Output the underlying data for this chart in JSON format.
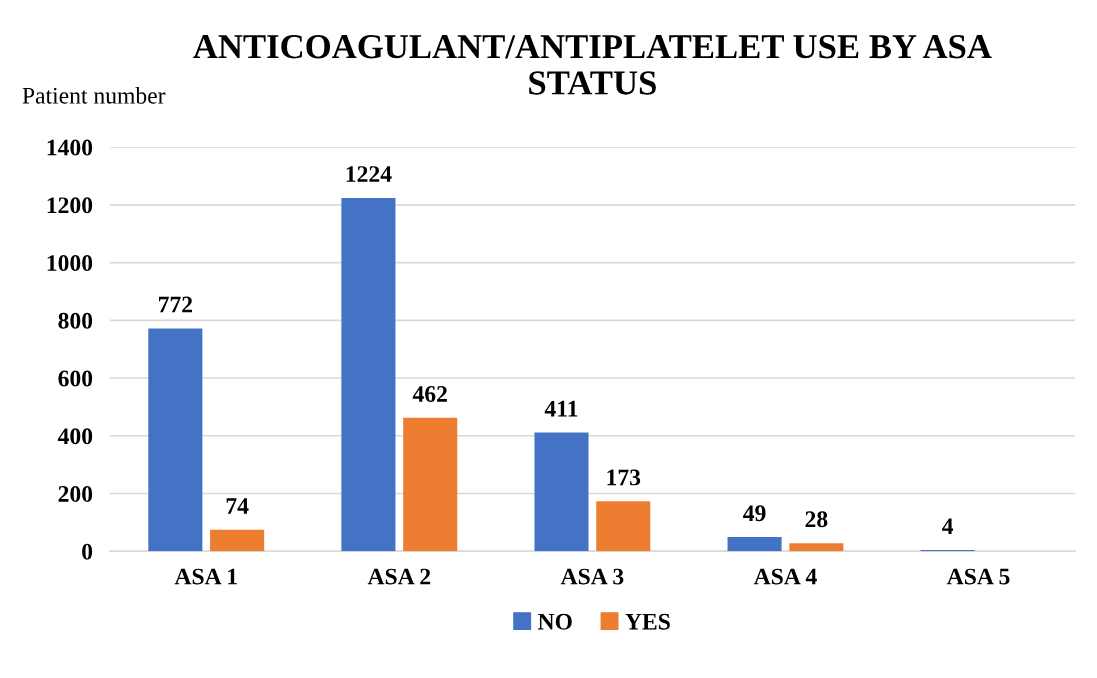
{
  "chart_data": {
    "type": "bar",
    "title": "ANTICOAGULANT/ANTIPLATELET USE BY ASA\nSTATUS",
    "ylabel": "Patient number",
    "categories": [
      "ASA 1",
      "ASA 2",
      "ASA 3",
      "ASA 4",
      "ASA 5"
    ],
    "series": [
      {
        "name": "NO",
        "color": "#4472c4",
        "values": [
          772,
          1224,
          411,
          49,
          4
        ]
      },
      {
        "name": "YES",
        "color": "#ed7d31",
        "values": [
          74,
          462,
          173,
          28,
          null
        ]
      }
    ],
    "ylim": [
      0,
      1400
    ],
    "yticks": [
      0,
      200,
      400,
      600,
      800,
      1000,
      1200,
      1400
    ],
    "grid": "y",
    "legend": "bottom",
    "data_labels": true
  }
}
